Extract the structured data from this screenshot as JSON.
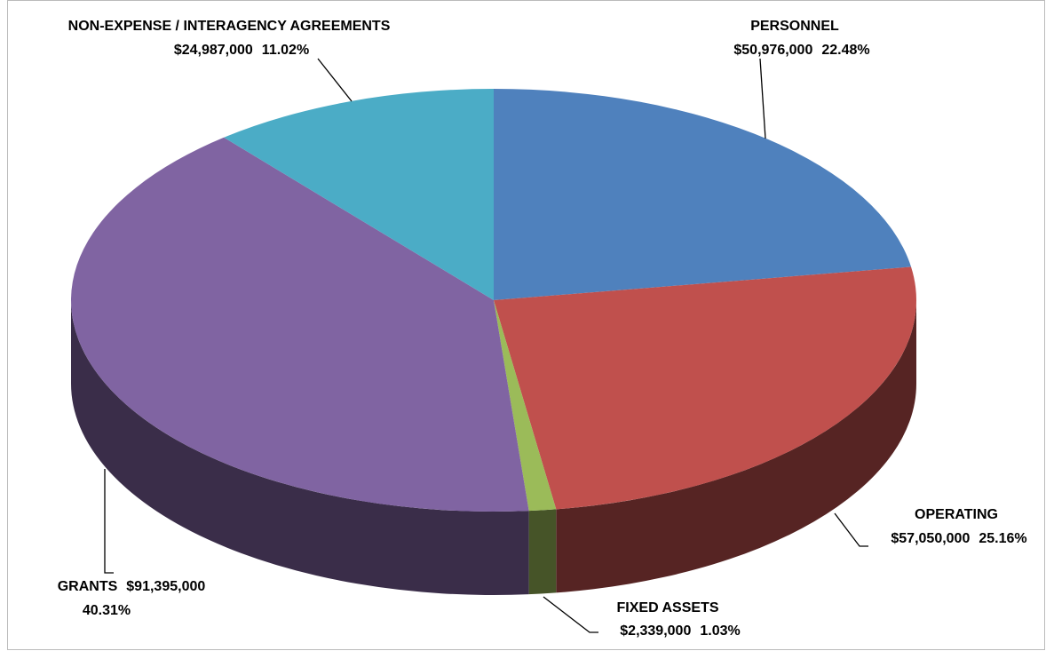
{
  "chart_data": {
    "type": "pie3d",
    "categories": [
      "PERSONNEL",
      "OPERATING",
      "FIXED ASSETS",
      "GRANTS",
      "NON-EXPENSE / INTERAGENCY AGREEMENTS"
    ],
    "values": [
      50976000,
      57050000,
      2339000,
      91395000,
      24987000
    ],
    "value_labels": [
      "$50,976,000",
      "$57,050,000",
      "$2,339,000",
      "$91,395,000",
      "$24,987,000"
    ],
    "percents": [
      22.48,
      25.16,
      1.03,
      40.31,
      11.02
    ],
    "percent_labels": [
      "22.48%",
      "25.16%",
      "1.03%",
      "40.31%",
      "11.02%"
    ],
    "colors": [
      "#4f81bd",
      "#c0504d",
      "#9bbb59",
      "#8064a2",
      "#4bacc6"
    ]
  }
}
